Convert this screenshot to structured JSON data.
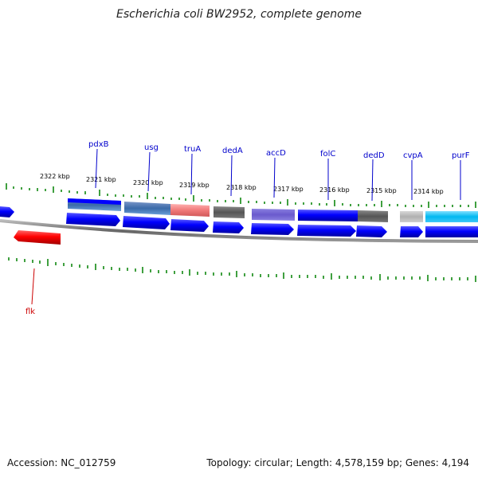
{
  "title": "Escherichia coli BW2952, complete genome",
  "accession": "Accession: NC_012759",
  "topology": "Topology: circular; Length: 4,578,159 bp; Genes: 4,194",
  "coordinate_labels": [
    "2322 kbp",
    "2321 kbp",
    "2320 kbp",
    "2319 kbp",
    "2318 kbp",
    "2317 kbp",
    "2316 kbp",
    "2315 kbp",
    "2314 kbp"
  ],
  "gene_labels": [
    "pdxB",
    "usg",
    "truA",
    "dedA",
    "accD",
    "folC",
    "dedD",
    "cvpA",
    "purF"
  ],
  "lower_gene_label": "flk",
  "colors": {
    "blue": "#0000ff",
    "red": "#ff0000",
    "tick": "#008000",
    "backbone": "#777777",
    "label_blue": "#0000cc",
    "label_red": "#cc0000"
  }
}
